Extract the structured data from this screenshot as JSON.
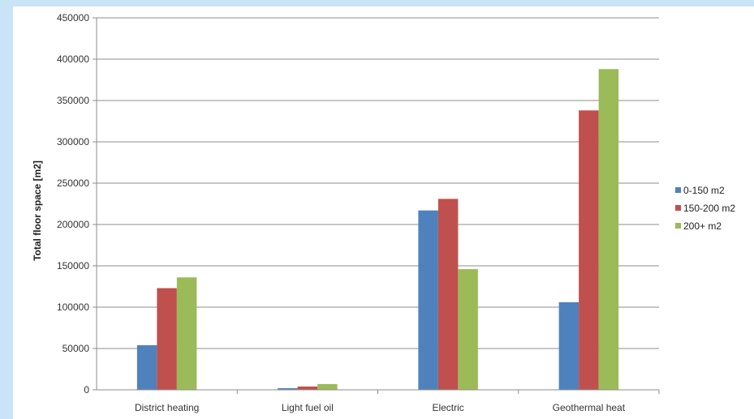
{
  "chart_data": {
    "type": "bar",
    "title": "",
    "xlabel": "",
    "ylabel": "Total floor space [m2]",
    "ylim": [
      0,
      450000
    ],
    "yticks": [
      0,
      50000,
      100000,
      150000,
      200000,
      250000,
      300000,
      350000,
      400000,
      450000
    ],
    "grid": true,
    "legend_position": "right",
    "categories": [
      "District heating",
      "Light fuel oil",
      "Electric",
      "Geothermal heat"
    ],
    "series": [
      {
        "name": "0-150 m2",
        "color": "#4f81bd",
        "values": [
          54000,
          2000,
          217000,
          106000
        ]
      },
      {
        "name": "150-200 m2",
        "color": "#c0504d",
        "values": [
          123000,
          4000,
          231000,
          338000
        ]
      },
      {
        "name": "200+ m2",
        "color": "#9bbb59",
        "values": [
          136000,
          7000,
          146000,
          388000
        ]
      }
    ]
  }
}
